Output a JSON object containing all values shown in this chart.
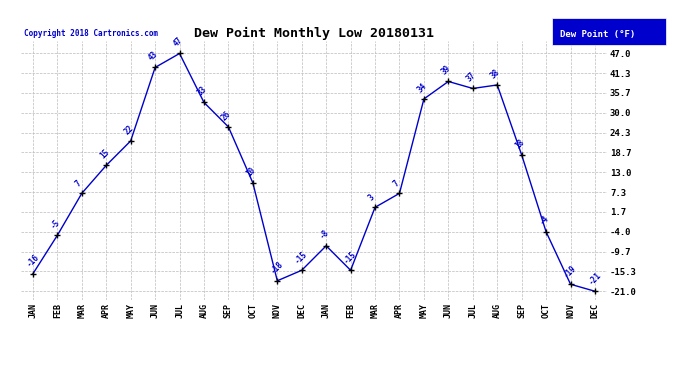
{
  "title": "Dew Point Monthly Low 20180131",
  "copyright": "Copyright 2018 Cartronics.com",
  "legend_label": "Dew Point (°F)",
  "months": [
    "JAN",
    "FEB",
    "MAR",
    "APR",
    "MAY",
    "JUN",
    "JUL",
    "AUG",
    "SEP",
    "OCT",
    "NOV",
    "DEC",
    "JAN",
    "FEB",
    "MAR",
    "APR",
    "MAY",
    "JUN",
    "JUL",
    "AUG",
    "SEP",
    "OCT",
    "NOV",
    "DEC"
  ],
  "values": [
    -16,
    -5,
    7,
    15,
    22,
    43,
    47,
    33,
    26,
    10,
    -18,
    -15,
    -8,
    -15,
    3,
    7,
    34,
    39,
    37,
    38,
    18,
    -4,
    -19,
    -21
  ],
  "yticks": [
    47.0,
    41.3,
    35.7,
    30.0,
    24.3,
    18.7,
    13.0,
    7.3,
    1.7,
    -4.0,
    -9.7,
    -15.3,
    -21.0
  ],
  "ylim": [
    -23.5,
    50.5
  ],
  "line_color": "#0000cc",
  "marker_color": "#000000",
  "bg_color": "#ffffff",
  "grid_color": "#bbbbbb",
  "title_color": "#000000",
  "label_color": "#0000cc",
  "legend_bg": "#0000cc",
  "legend_fg": "#ffffff"
}
